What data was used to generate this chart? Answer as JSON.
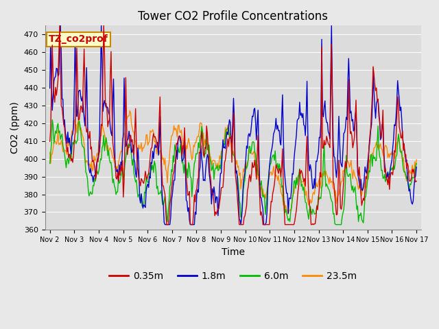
{
  "title": "Tower CO2 Profile Concentrations",
  "xlabel": "Time",
  "ylabel": "CO2 (ppm)",
  "annotation_text": "TZ_co2prof",
  "annotation_bg": "#FFFFCC",
  "annotation_border": "#CC8800",
  "ylim": [
    360,
    475
  ],
  "yticks": [
    360,
    370,
    380,
    390,
    400,
    410,
    420,
    430,
    440,
    450,
    460,
    470
  ],
  "xtick_labels": [
    "Nov 2",
    "Nov 3",
    "Nov 4",
    "Nov 5",
    "Nov 6",
    "Nov 7",
    "Nov 8",
    "Nov 9",
    "Nov 10",
    "Nov 11",
    "Nov 12",
    "Nov 13",
    "Nov 14",
    "Nov 15",
    "Nov 16",
    "Nov 17"
  ],
  "series": {
    "0.35m": {
      "color": "#CC0000",
      "linewidth": 1.0
    },
    "1.8m": {
      "color": "#0000CC",
      "linewidth": 1.0
    },
    "6.0m": {
      "color": "#00BB00",
      "linewidth": 1.0
    },
    "23.5m": {
      "color": "#FF8800",
      "linewidth": 1.0
    }
  },
  "bg_color": "#E8E8E8",
  "plot_bg": "#DCDCDC",
  "grid_color": "#FFFFFF",
  "title_fontsize": 12,
  "tick_fontsize": 8,
  "legend_fontsize": 10,
  "axis_label_fontsize": 10
}
